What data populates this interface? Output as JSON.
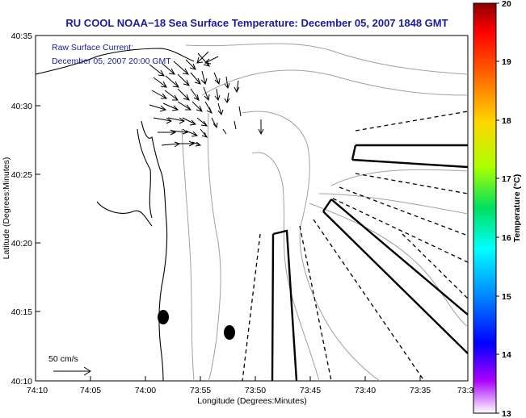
{
  "title": "RU COOL  NOAA−18  Sea Surface Temperature:  December 05, 2007 1848 GMT",
  "subtitle": {
    "line1": "Raw Surface Current:",
    "line2": "December 05, 2007 20:00 GMT"
  },
  "axes": {
    "xlabel": "Longitude (Degrees:Minutes)",
    "ylabel": "Latitude (Degrees:Minutes)",
    "x_ticks": [
      "74:10",
      "74:05",
      "74:00",
      "73:55",
      "73:50",
      "73:45",
      "73:40",
      "73:35",
      "73:3"
    ],
    "y_ticks": [
      "40:35",
      "40:30",
      "40:25",
      "40:20",
      "40:15",
      "40:10"
    ]
  },
  "colorbar": {
    "label": "Temperature (°C)",
    "ticks": [
      "20",
      "19",
      "18",
      "17",
      "16",
      "15",
      "14",
      "13"
    ]
  },
  "scale_arrow": {
    "label": "50 cm/s"
  },
  "icons": {
    "scale-arrow": "right-arrow",
    "buoy-markers": "filled-ellipse"
  }
}
